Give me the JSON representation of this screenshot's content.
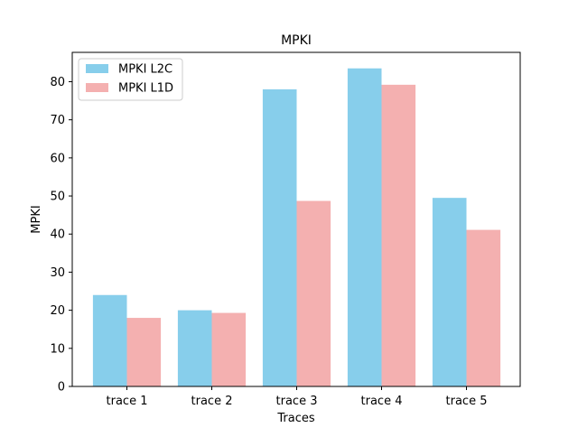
{
  "chart_data": {
    "type": "bar",
    "title": "MPKI",
    "xlabel": "Traces",
    "ylabel": "MPKI",
    "categories": [
      "trace 1",
      "trace 2",
      "trace 3",
      "trace 4",
      "trace 5"
    ],
    "series": [
      {
        "name": "MPKI L2C",
        "color": "#87ceeb",
        "values": [
          24.0,
          20.0,
          78.0,
          83.5,
          49.5
        ]
      },
      {
        "name": "MPKI L1D",
        "color": "#f4b0b0",
        "values": [
          18.0,
          19.3,
          48.7,
          79.2,
          41.1
        ]
      }
    ],
    "ylim": [
      0,
      87.7
    ],
    "yticks": [
      0,
      10,
      20,
      30,
      40,
      50,
      60,
      70,
      80
    ],
    "grid": false,
    "legend_position": "top-left"
  }
}
